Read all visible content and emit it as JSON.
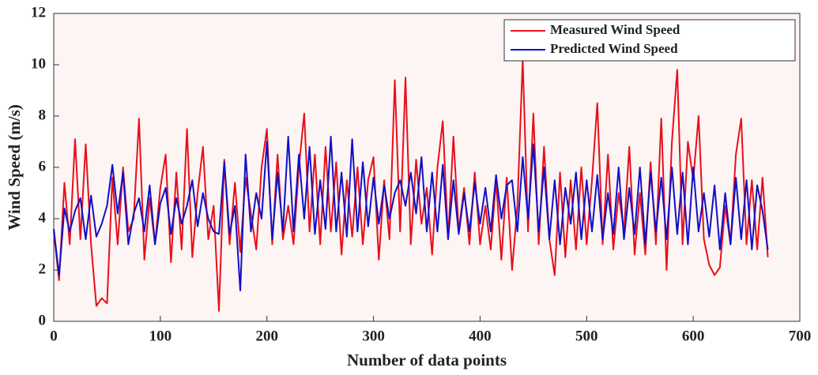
{
  "chart_data": {
    "type": "line",
    "xlabel": "Number of data points",
    "ylabel": "Wind Speed (m/s)",
    "xlim": [
      0,
      700
    ],
    "xticks": [
      0,
      100,
      200,
      300,
      400,
      500,
      600,
      700
    ],
    "ylim": [
      0,
      12
    ],
    "yticks": [
      0,
      2,
      4,
      6,
      8,
      10,
      12
    ],
    "legend": "upper right",
    "background": "#fdf4f4",
    "x": [
      0,
      5,
      10,
      15,
      20,
      25,
      30,
      35,
      40,
      45,
      50,
      55,
      60,
      65,
      70,
      75,
      80,
      85,
      90,
      95,
      100,
      105,
      110,
      115,
      120,
      125,
      130,
      135,
      140,
      145,
      150,
      155,
      160,
      165,
      170,
      175,
      180,
      185,
      190,
      195,
      200,
      205,
      210,
      215,
      220,
      225,
      230,
      235,
      240,
      245,
      250,
      255,
      260,
      265,
      270,
      275,
      280,
      285,
      290,
      295,
      300,
      305,
      310,
      315,
      320,
      325,
      330,
      335,
      340,
      345,
      350,
      355,
      360,
      365,
      370,
      375,
      380,
      385,
      390,
      395,
      400,
      405,
      410,
      415,
      420,
      425,
      430,
      435,
      440,
      445,
      450,
      455,
      460,
      465,
      470,
      475,
      480,
      485,
      490,
      495,
      500,
      505,
      510,
      515,
      520,
      525,
      530,
      535,
      540,
      545,
      550,
      555,
      560,
      565,
      570,
      575,
      580,
      585,
      590,
      595,
      600,
      605,
      610,
      615,
      620,
      625,
      630,
      635,
      640,
      645,
      650,
      655,
      660,
      665,
      670
    ],
    "series": [
      {
        "name": "Measured Wind Speed",
        "color": "#e8101a",
        "values": [
          3.5,
          1.6,
          5.4,
          3.0,
          7.1,
          3.2,
          6.9,
          3.0,
          0.6,
          0.9,
          0.7,
          5.6,
          3.0,
          6.0,
          3.5,
          4.0,
          7.9,
          2.4,
          4.8,
          3.0,
          5.2,
          6.5,
          2.3,
          5.8,
          2.8,
          7.5,
          2.5,
          5.0,
          6.8,
          3.2,
          4.5,
          0.4,
          6.3,
          3.0,
          5.4,
          2.7,
          5.6,
          4.2,
          2.8,
          6.0,
          7.5,
          3.0,
          6.5,
          3.2,
          4.5,
          3.0,
          6.0,
          8.1,
          3.5,
          6.5,
          3.0,
          6.8,
          3.5,
          6.2,
          2.6,
          5.5,
          3.3,
          6.0,
          3.0,
          5.5,
          6.4,
          2.4,
          5.5,
          3.2,
          9.4,
          3.5,
          9.5,
          3.0,
          6.3,
          3.8,
          5.2,
          2.6,
          6.0,
          7.8,
          3.2,
          7.2,
          3.5,
          5.2,
          3.0,
          5.8,
          3.0,
          4.5,
          2.8,
          5.5,
          2.4,
          5.6,
          2.0,
          4.5,
          10.2,
          3.5,
          8.1,
          3.0,
          6.8,
          3.2,
          1.8,
          5.8,
          2.5,
          5.5,
          2.8,
          6.0,
          3.0,
          5.5,
          8.5,
          3.0,
          6.5,
          2.8,
          5.0,
          3.5,
          6.8,
          2.6,
          5.0,
          2.6,
          6.2,
          3.0,
          7.9,
          2.0,
          7.0,
          9.8,
          3.0,
          7.0,
          5.5,
          8.0,
          3.2,
          2.2,
          1.8,
          2.1,
          4.5,
          3.0,
          6.5,
          7.9,
          3.0,
          5.5,
          2.8,
          5.6,
          2.5
        ]
      },
      {
        "name": "Predicted Wind Speed",
        "color": "#1010c8",
        "values": [
          3.6,
          1.8,
          4.4,
          3.5,
          4.3,
          4.8,
          3.2,
          4.9,
          3.3,
          3.8,
          4.5,
          6.1,
          4.2,
          5.8,
          3.0,
          4.2,
          4.8,
          3.5,
          5.3,
          3.0,
          4.6,
          5.2,
          3.4,
          4.8,
          3.8,
          4.5,
          5.5,
          3.7,
          5.0,
          4.0,
          3.5,
          3.4,
          6.2,
          3.4,
          4.5,
          1.2,
          6.5,
          3.5,
          5.0,
          4.0,
          7.0,
          3.2,
          5.8,
          3.5,
          7.2,
          3.5,
          6.5,
          4.0,
          6.8,
          3.4,
          5.5,
          3.6,
          7.2,
          3.5,
          5.8,
          3.3,
          7.1,
          3.5,
          6.2,
          3.7,
          5.6,
          3.8,
          5.3,
          4.0,
          5.0,
          5.5,
          4.5,
          5.8,
          4.2,
          6.4,
          3.5,
          5.8,
          3.5,
          6.1,
          3.2,
          5.5,
          3.4,
          5.0,
          3.5,
          5.4,
          3.8,
          5.2,
          3.5,
          5.7,
          4.0,
          5.3,
          5.5,
          3.5,
          6.4,
          4.0,
          6.9,
          3.5,
          6.0,
          3.2,
          5.5,
          3.0,
          5.2,
          3.8,
          5.8,
          3.2,
          5.5,
          3.5,
          5.7,
          3.2,
          5.0,
          3.4,
          6.0,
          3.2,
          5.2,
          3.4,
          6.0,
          3.0,
          5.8,
          3.5,
          5.6,
          3.2,
          6.0,
          3.4,
          5.8,
          3.0,
          6.0,
          3.5,
          5.0,
          3.3,
          5.3,
          2.8,
          5.0,
          3.0,
          5.6,
          3.2,
          5.5,
          2.8,
          5.3,
          4.3,
          2.8
        ]
      }
    ]
  }
}
